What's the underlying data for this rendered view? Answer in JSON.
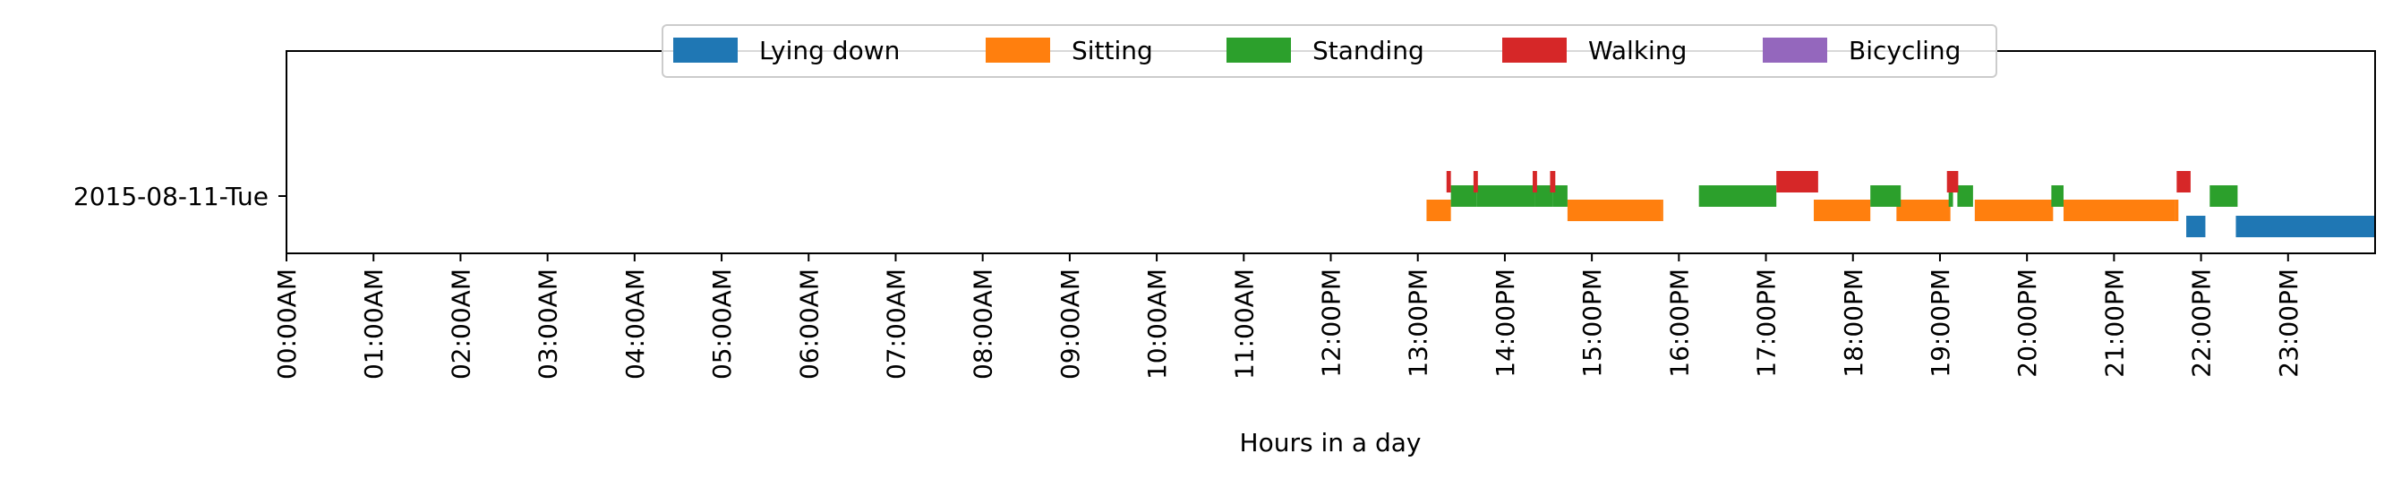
{
  "chart_data": {
    "type": "timeline",
    "xlabel": "Hours in a day",
    "xlim": [
      0,
      24
    ],
    "categories": [
      "2015-08-11-Tue"
    ],
    "x_ticks": [
      "00:00AM",
      "01:00AM",
      "02:00AM",
      "03:00AM",
      "04:00AM",
      "05:00AM",
      "06:00AM",
      "07:00AM",
      "08:00AM",
      "09:00AM",
      "10:00AM",
      "11:00AM",
      "12:00PM",
      "13:00PM",
      "14:00PM",
      "15:00PM",
      "16:00PM",
      "17:00PM",
      "18:00PM",
      "19:00PM",
      "20:00PM",
      "21:00PM",
      "22:00PM",
      "23:00PM"
    ],
    "legend_position": "top-center",
    "grid": false,
    "series": [
      {
        "name": "Lying down",
        "color": "#1f77b4",
        "intervals": [
          [
            21.83,
            22.05
          ],
          [
            22.4,
            24.0
          ]
        ]
      },
      {
        "name": "Sitting",
        "color": "#ff7f0e",
        "intervals": [
          [
            13.1,
            13.38
          ],
          [
            14.72,
            15.8
          ],
          [
            15.8,
            15.82
          ],
          [
            17.55,
            18.2
          ],
          [
            18.5,
            19.12
          ],
          [
            19.4,
            20.3
          ],
          [
            20.42,
            21.7
          ],
          [
            21.7,
            21.74
          ]
        ]
      },
      {
        "name": "Standing",
        "color": "#2ca02c",
        "intervals": [
          [
            13.38,
            13.68
          ],
          [
            13.68,
            14.35
          ],
          [
            14.35,
            14.55
          ],
          [
            14.55,
            14.72
          ],
          [
            16.23,
            17.12
          ],
          [
            18.2,
            18.55
          ],
          [
            19.1,
            19.15
          ],
          [
            19.2,
            19.38
          ],
          [
            20.28,
            20.42
          ],
          [
            22.1,
            22.42
          ]
        ]
      },
      {
        "name": "Walking",
        "color": "#d62728",
        "intervals": [
          [
            13.33,
            13.38
          ],
          [
            13.64,
            13.69
          ],
          [
            14.32,
            14.37
          ],
          [
            14.52,
            14.58
          ],
          [
            17.12,
            17.6
          ],
          [
            19.08,
            19.21
          ],
          [
            21.72,
            21.88
          ]
        ]
      },
      {
        "name": "Bicycling",
        "color": "#9467bd",
        "intervals": []
      }
    ]
  }
}
